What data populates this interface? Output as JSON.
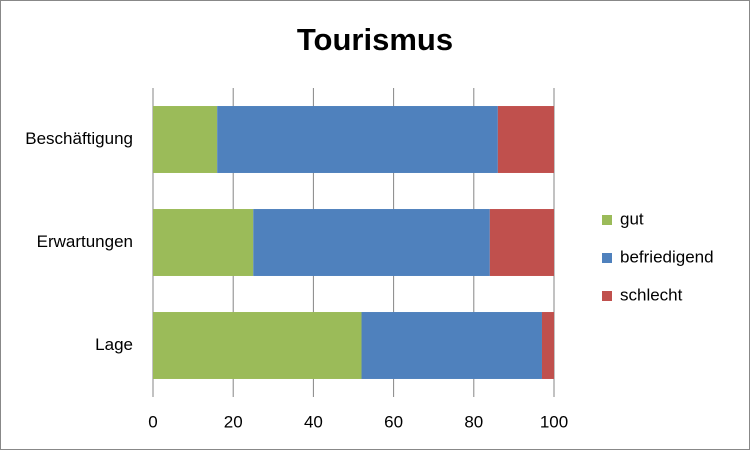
{
  "chart_data": {
    "type": "stacked-bar-horizontal",
    "title": "Tourismus",
    "categories": [
      "Beschäftigung",
      "Erwartungen",
      "Lage"
    ],
    "series": [
      {
        "name": "gut",
        "color": "#9bbb59",
        "values": [
          16,
          25,
          52
        ]
      },
      {
        "name": "befriedigend",
        "color": "#4f81bd",
        "values": [
          70,
          59,
          45
        ]
      },
      {
        "name": "schlecht",
        "color": "#c0504d",
        "values": [
          14,
          16,
          3
        ]
      }
    ],
    "xlim": [
      0,
      100
    ],
    "xticks": [
      0,
      20,
      40,
      60,
      80,
      100
    ],
    "grid": true,
    "legend": "right"
  }
}
